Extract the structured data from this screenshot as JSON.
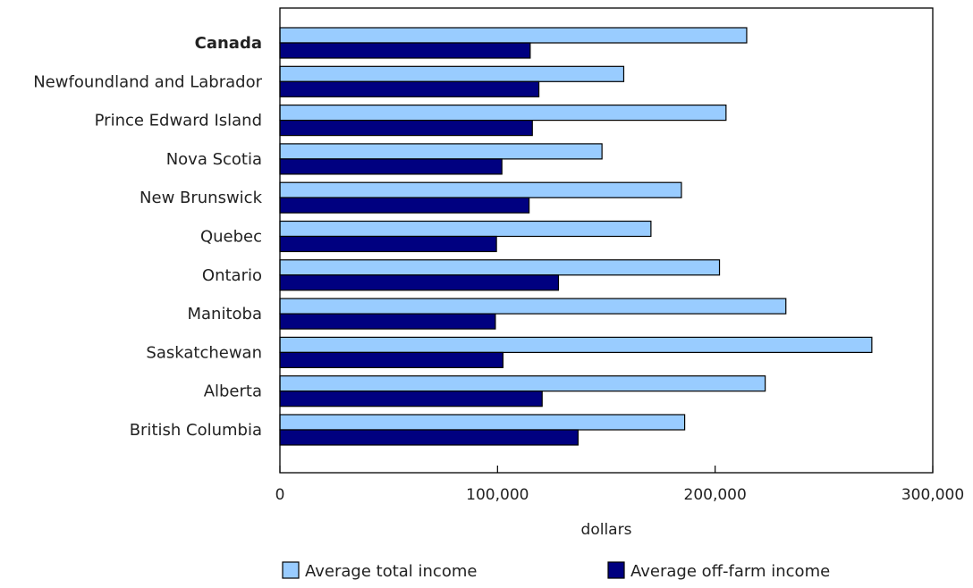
{
  "chart_data": {
    "type": "bar",
    "orientation": "horizontal",
    "categories": [
      "Canada",
      "Newfoundland and Labrador",
      "Prince Edward Island",
      "Nova Scotia",
      "New Brunswick",
      "Quebec",
      "Ontario",
      "Manitoba",
      "Saskatchewan",
      "Alberta",
      "British Columbia"
    ],
    "bold_categories": [
      "Canada"
    ],
    "series": [
      {
        "name": "Average total income",
        "color": "#99ccff",
        "values": [
          214500,
          158000,
          205000,
          148000,
          184500,
          170500,
          202000,
          232500,
          272000,
          223000,
          186000
        ]
      },
      {
        "name": "Average off-farm income",
        "color": "#000080",
        "values": [
          115000,
          119000,
          116000,
          102000,
          114500,
          99500,
          128000,
          99000,
          102500,
          120500,
          137000
        ]
      }
    ],
    "xlabel": "dollars",
    "ylabel": "",
    "xlim": [
      0,
      300000
    ],
    "x_ticks": [
      0,
      100000,
      200000,
      300000
    ],
    "x_tick_labels": [
      "0",
      "100,000",
      "200,000",
      "300,000"
    ],
    "grid": false,
    "legend": "bottom"
  }
}
